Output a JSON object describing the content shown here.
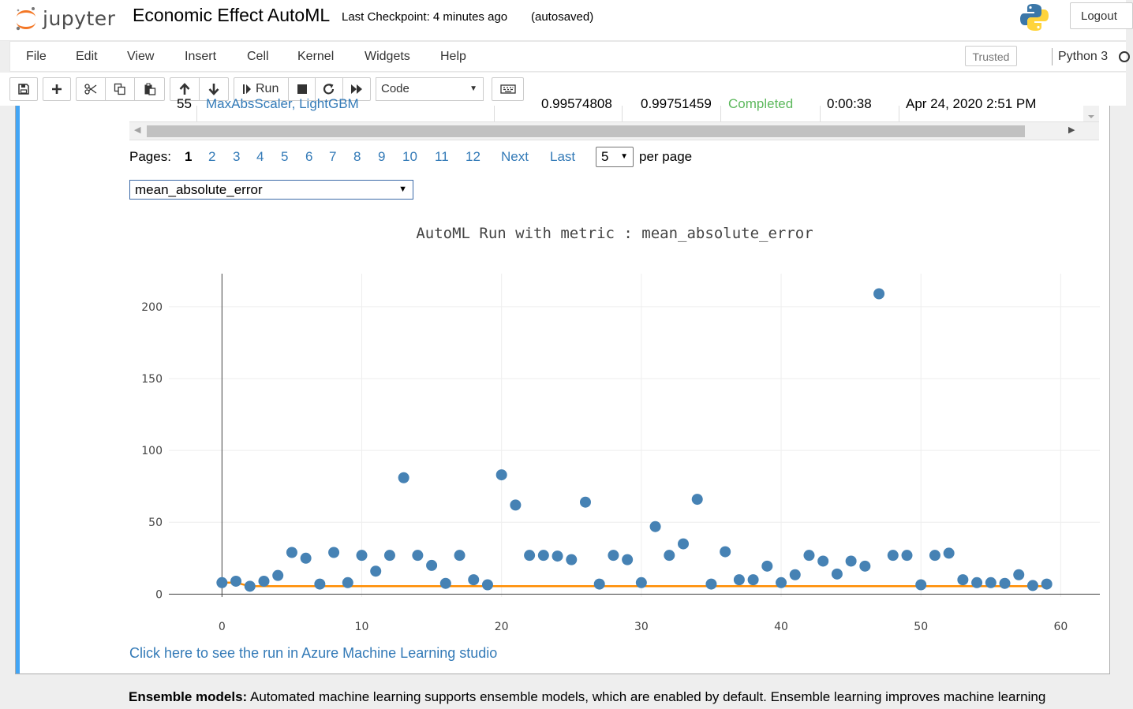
{
  "header": {
    "logo_text": "jupyter",
    "notebook_title": "Economic Effect AutoML",
    "checkpoint": "Last Checkpoint: 4 minutes ago",
    "autosaved": "(autosaved)",
    "logout_label": "Logout"
  },
  "menubar": {
    "items": [
      "File",
      "Edit",
      "View",
      "Insert",
      "Cell",
      "Kernel",
      "Widgets",
      "Help"
    ],
    "trusted_label": "Trusted",
    "kernel_name": "Python 3"
  },
  "toolbar": {
    "run_label": "Run",
    "cell_type": "Code",
    "icons": [
      "save-icon",
      "plus-icon",
      "cut-icon",
      "copy-icon",
      "paste-icon",
      "arrow-up-icon",
      "arrow-down-icon",
      "run-icon",
      "stop-icon",
      "restart-icon",
      "fast-forward-icon",
      "keyboard-icon"
    ]
  },
  "table_row": {
    "index": "55",
    "pipeline": "MaxAbsScaler, LightGBM",
    "metric_value": "0.99574808",
    "best_metric": "0.99751459",
    "status": "Completed",
    "duration": "0:00:38",
    "started": "Apr 24, 2020 2:51 PM",
    "status_color": "#5cb85c"
  },
  "pagination": {
    "pages_label": "Pages:",
    "current_page": "1",
    "other_pages": [
      "2",
      "3",
      "4",
      "5",
      "6",
      "7",
      "8",
      "9",
      "10",
      "11",
      "12"
    ],
    "next_label": "Next",
    "last_label": "Last",
    "per_page_value": "5",
    "per_page_label": "per page"
  },
  "metric_select": {
    "selected": "mean_absolute_error"
  },
  "chart_data": {
    "type": "scatter",
    "title": "AutoML Run with metric : mean_absolute_error",
    "xlabel": "",
    "ylabel": "",
    "xlim": [
      -3.8,
      62.8
    ],
    "ylim": [
      -2,
      223
    ],
    "x_ticks": [
      0,
      10,
      20,
      30,
      40,
      50,
      60
    ],
    "y_ticks": [
      0,
      50,
      100,
      150,
      200
    ],
    "grid": true,
    "point_color": "#4682b4",
    "best_line_color": "#ff8c00",
    "x": [
      0,
      1,
      2,
      3,
      4,
      5,
      6,
      7,
      8,
      9,
      10,
      11,
      12,
      13,
      14,
      15,
      16,
      17,
      18,
      19,
      20,
      21,
      22,
      23,
      24,
      25,
      26,
      27,
      28,
      29,
      30,
      31,
      32,
      33,
      34,
      35,
      36,
      37,
      38,
      39,
      40,
      41,
      42,
      43,
      44,
      45,
      46,
      47,
      48,
      49,
      50,
      51,
      52,
      53,
      54,
      55,
      56,
      57,
      58,
      59
    ],
    "y": [
      8,
      9,
      5.5,
      9,
      13,
      29,
      25,
      7,
      29,
      8,
      27,
      16,
      27,
      81,
      27,
      20,
      7.5,
      27,
      10,
      6.5,
      83,
      62,
      27,
      27,
      26.5,
      24,
      64,
      7,
      27,
      24,
      8,
      47,
      27,
      35,
      66,
      7,
      29.5,
      10,
      10,
      19.5,
      8,
      13.5,
      27,
      23,
      14,
      23,
      19.5,
      209,
      27,
      27,
      6.5,
      27,
      28.5,
      10,
      8,
      8,
      7.5,
      13.5,
      6,
      7
    ],
    "best_line": [
      8,
      8,
      5.5,
      5.5,
      5.5,
      5.5,
      5.5,
      5.5,
      5.5,
      5.5,
      5.5,
      5.5,
      5.5,
      5.5,
      5.5,
      5.5,
      5.5,
      5.5,
      5.5,
      5.5,
      5.5,
      5.5,
      5.5,
      5.5,
      5.5,
      5.5,
      5.5,
      5.5,
      5.5,
      5.5,
      5.5,
      5.5,
      5.5,
      5.5,
      5.5,
      5.5,
      5.5,
      5.5,
      5.5,
      5.5,
      5.5,
      5.5,
      5.5,
      5.5,
      5.5,
      5.5,
      5.5,
      5.5,
      5.5,
      5.5,
      5.5,
      5.5,
      5.5,
      5.5,
      5.5,
      5.5,
      5.5,
      5.5,
      5.5,
      5.5
    ]
  },
  "link": {
    "azure_text": "Click here to see the run in Azure Machine Learning studio"
  },
  "markdown": {
    "bold": "Ensemble models:",
    "text": " Automated machine learning supports ensemble models, which are enabled by default. Ensemble learning improves machine learning"
  }
}
